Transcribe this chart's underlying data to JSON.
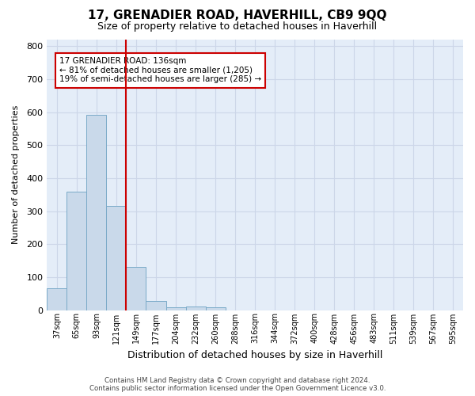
{
  "title": "17, GRENADIER ROAD, HAVERHILL, CB9 9QQ",
  "subtitle": "Size of property relative to detached houses in Haverhill",
  "xlabel": "Distribution of detached houses by size in Haverhill",
  "ylabel": "Number of detached properties",
  "footer_line1": "Contains HM Land Registry data © Crown copyright and database right 2024.",
  "footer_line2": "Contains public sector information licensed under the Open Government Licence v3.0.",
  "bins": [
    "37sqm",
    "65sqm",
    "93sqm",
    "121sqm",
    "149sqm",
    "177sqm",
    "204sqm",
    "232sqm",
    "260sqm",
    "288sqm",
    "316sqm",
    "344sqm",
    "372sqm",
    "400sqm",
    "428sqm",
    "456sqm",
    "483sqm",
    "511sqm",
    "539sqm",
    "567sqm",
    "595sqm"
  ],
  "bar_values": [
    67,
    360,
    593,
    315,
    130,
    27,
    8,
    10,
    8,
    0,
    0,
    0,
    0,
    0,
    0,
    0,
    0,
    0,
    0,
    0,
    0
  ],
  "bar_color": "#c9d9ea",
  "bar_edge_color": "#7aaac8",
  "vline_color": "#cc0000",
  "annotation_box_text_line1": "17 GRENADIER ROAD: 136sqm",
  "annotation_box_text_line2": "← 81% of detached houses are smaller (1,205)",
  "annotation_box_text_line3": "19% of semi-detached houses are larger (285) →",
  "annotation_box_color": "#cc0000",
  "ylim": [
    0,
    820
  ],
  "yticks": [
    0,
    100,
    200,
    300,
    400,
    500,
    600,
    700,
    800
  ],
  "grid_color": "#ccd6e8",
  "background_color": "#e4edf8",
  "vline_position": 3.5
}
